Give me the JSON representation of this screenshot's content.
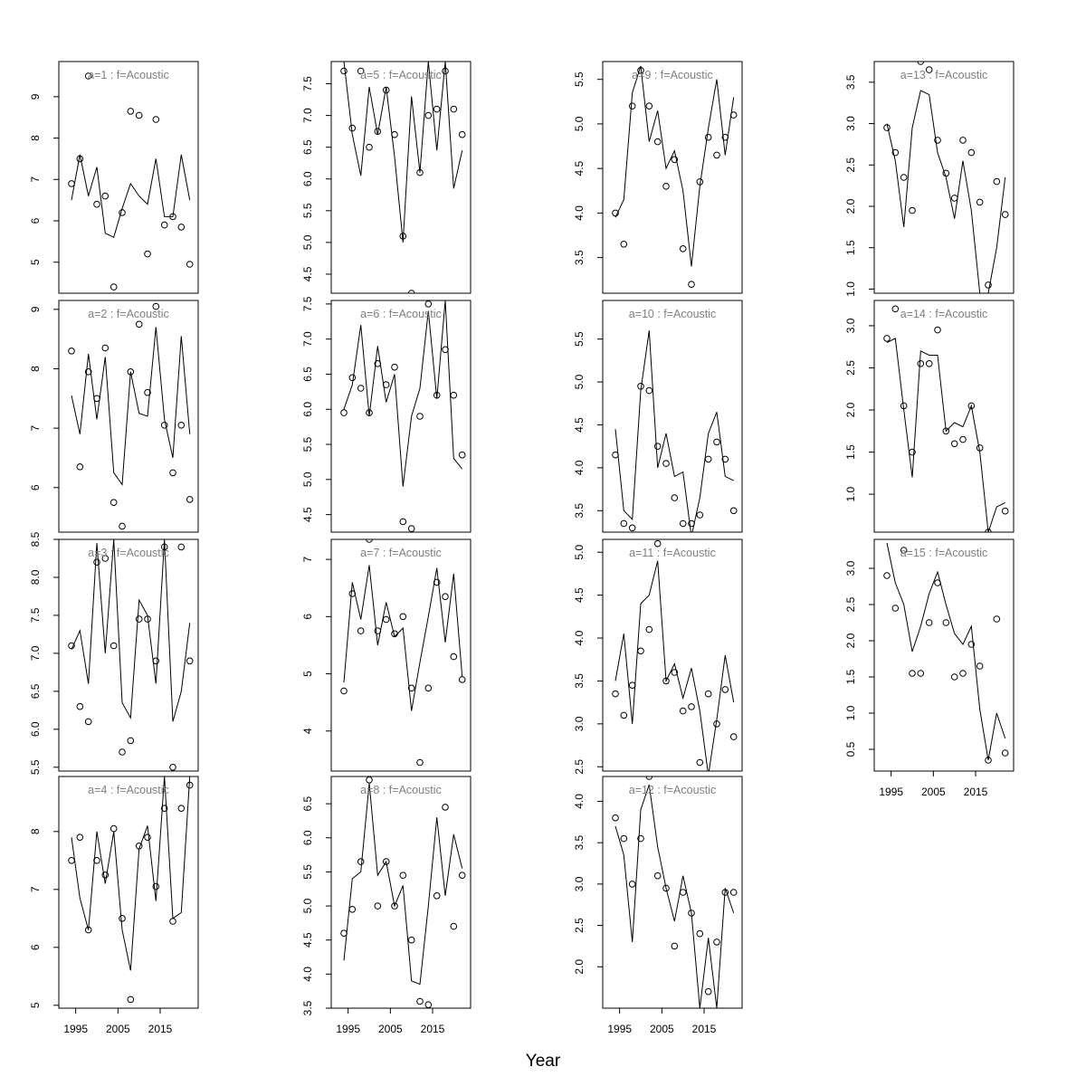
{
  "figure": {
    "xlabel": "Year"
  },
  "style": {
    "line_color": "#000000",
    "point_color": "#000000",
    "title_color": "#808080",
    "frame_color": "#000000",
    "line_type": "observed values as circles, fitted values as line"
  },
  "chart_data": [
    {
      "type": "line",
      "title": "a=1  :  f=Acoustic",
      "xlim": [
        1991,
        2024
      ],
      "ylim": [
        4.25,
        9.85
      ],
      "yticks": [
        5,
        6,
        7,
        8,
        9
      ],
      "xticks": [
        1995,
        2005,
        2015
      ],
      "show_xticks": false,
      "x": [
        1994,
        1996,
        1998,
        2000,
        2002,
        2004,
        2006,
        2008,
        2010,
        2012,
        2014,
        2016,
        2018,
        2020,
        2022
      ],
      "fit": [
        6.5,
        7.6,
        6.6,
        7.3,
        5.7,
        5.6,
        6.3,
        6.9,
        6.6,
        6.4,
        7.5,
        6.1,
        6.1,
        7.6,
        6.5
      ],
      "observed": [
        6.9,
        7.5,
        9.5,
        6.4,
        6.6,
        4.4,
        6.2,
        8.65,
        8.55,
        5.2,
        8.45,
        5.9,
        6.1,
        5.85,
        4.95
      ]
    },
    {
      "type": "line",
      "title": "a=2  :  f=Acoustic",
      "xlim": [
        1991,
        2024
      ],
      "ylim": [
        5.25,
        9.15
      ],
      "yticks": [
        6,
        7,
        8,
        9
      ],
      "xticks": [
        1995,
        2005,
        2015
      ],
      "show_xticks": false,
      "x": [
        1994,
        1996,
        1998,
        2000,
        2002,
        2004,
        2006,
        2008,
        2010,
        2012,
        2014,
        2016,
        2018,
        2020,
        2022
      ],
      "fit": [
        7.55,
        6.9,
        8.25,
        7.15,
        8.2,
        6.25,
        6.05,
        7.95,
        7.25,
        7.2,
        8.7,
        7.15,
        6.5,
        8.55,
        6.9
      ],
      "observed": [
        8.3,
        6.35,
        7.95,
        7.5,
        8.35,
        5.75,
        5.35,
        7.95,
        8.75,
        7.6,
        9.05,
        7.05,
        6.25,
        7.05,
        5.8
      ]
    },
    {
      "type": "line",
      "title": "a=3  :  f=Acoustic",
      "xlim": [
        1991,
        2024
      ],
      "ylim": [
        5.45,
        8.5
      ],
      "yticks": [
        5.5,
        6.0,
        6.5,
        7.0,
        7.5,
        8.0,
        8.5
      ],
      "xticks": [
        1995,
        2005,
        2015
      ],
      "show_xticks": false,
      "x": [
        1994,
        1996,
        1998,
        2000,
        2002,
        2004,
        2006,
        2008,
        2010,
        2012,
        2014,
        2016,
        2018,
        2020,
        2022
      ],
      "fit": [
        7.05,
        7.3,
        6.6,
        8.45,
        7.0,
        8.5,
        6.35,
        6.15,
        7.7,
        7.5,
        6.6,
        8.5,
        6.1,
        6.5,
        7.4
      ],
      "observed": [
        7.1,
        6.3,
        6.1,
        8.2,
        8.25,
        7.1,
        5.7,
        5.85,
        7.45,
        7.45,
        6.9,
        8.4,
        5.5,
        8.4,
        6.9
      ]
    },
    {
      "type": "line",
      "title": "a=4  :  f=Acoustic",
      "xlim": [
        1991,
        2024
      ],
      "ylim": [
        4.95,
        8.95
      ],
      "yticks": [
        5,
        6,
        7,
        8
      ],
      "xticks": [
        1995,
        2005,
        2015
      ],
      "show_xticks": true,
      "x": [
        1994,
        1996,
        1998,
        2000,
        2002,
        2004,
        2006,
        2008,
        2010,
        2012,
        2014,
        2016,
        2018,
        2020,
        2022
      ],
      "fit": [
        7.9,
        6.85,
        6.3,
        8.0,
        7.1,
        8.0,
        6.3,
        5.6,
        7.7,
        8.1,
        6.8,
        8.95,
        6.5,
        6.6,
        8.95
      ],
      "observed": [
        7.5,
        7.9,
        6.3,
        7.5,
        7.25,
        8.05,
        6.5,
        5.1,
        7.75,
        7.9,
        7.05,
        8.4,
        6.45,
        8.4,
        8.8
      ]
    },
    {
      "type": "line",
      "title": "a=5  :  f=Acoustic",
      "xlim": [
        1991,
        2024
      ],
      "ylim": [
        4.2,
        7.85
      ],
      "yticks": [
        4.5,
        5.0,
        5.5,
        6.0,
        6.5,
        7.0,
        7.5
      ],
      "xticks": [
        1995,
        2005,
        2015
      ],
      "show_xticks": false,
      "x": [
        1994,
        1996,
        1998,
        2000,
        2002,
        2004,
        2006,
        2008,
        2010,
        2012,
        2014,
        2016,
        2018,
        2020,
        2022
      ],
      "fit": [
        7.85,
        6.7,
        6.05,
        7.45,
        6.7,
        7.45,
        6.35,
        5.0,
        7.3,
        6.1,
        7.85,
        6.45,
        7.85,
        5.85,
        6.45
      ],
      "observed": [
        7.7,
        6.8,
        7.7,
        6.5,
        6.75,
        7.4,
        6.7,
        5.1,
        4.2,
        6.1,
        7.0,
        7.1,
        7.7,
        7.1,
        6.7
      ]
    },
    {
      "type": "line",
      "title": "a=6  :  f=Acoustic",
      "xlim": [
        1991,
        2024
      ],
      "ylim": [
        4.25,
        7.55
      ],
      "yticks": [
        4.5,
        5.0,
        5.5,
        6.0,
        6.5,
        7.0,
        7.5
      ],
      "xticks": [
        1995,
        2005,
        2015
      ],
      "show_xticks": false,
      "x": [
        1994,
        1996,
        1998,
        2000,
        2002,
        2004,
        2006,
        2008,
        2010,
        2012,
        2014,
        2016,
        2018,
        2020,
        2022
      ],
      "fit": [
        6.0,
        6.35,
        7.2,
        5.9,
        6.9,
        6.1,
        6.5,
        4.9,
        5.9,
        6.3,
        7.4,
        6.15,
        7.55,
        5.3,
        5.15
      ],
      "observed": [
        5.95,
        6.45,
        6.3,
        5.95,
        6.65,
        6.35,
        6.6,
        4.4,
        4.3,
        5.9,
        7.5,
        6.2,
        6.85,
        6.2,
        5.35
      ]
    },
    {
      "type": "line",
      "title": "a=7  :  f=Acoustic",
      "xlim": [
        1991,
        2024
      ],
      "ylim": [
        3.3,
        7.35
      ],
      "yticks": [
        4,
        5,
        6,
        7
      ],
      "xticks": [
        1995,
        2005,
        2015
      ],
      "show_xticks": false,
      "x": [
        1994,
        1996,
        1998,
        2000,
        2002,
        2004,
        2006,
        2008,
        2010,
        2012,
        2014,
        2016,
        2018,
        2020,
        2022
      ],
      "fit": [
        4.85,
        6.6,
        5.95,
        6.9,
        5.5,
        6.25,
        5.65,
        5.8,
        4.35,
        5.2,
        6.0,
        6.85,
        5.55,
        6.75,
        4.95
      ],
      "observed": [
        4.7,
        6.4,
        5.75,
        7.35,
        5.75,
        5.95,
        5.7,
        6.0,
        4.75,
        3.45,
        4.75,
        6.6,
        6.35,
        5.3,
        4.9
      ]
    },
    {
      "type": "line",
      "title": "a=8  :  f=Acoustic",
      "xlim": [
        1991,
        2024
      ],
      "ylim": [
        3.5,
        6.9
      ],
      "yticks": [
        3.5,
        4.0,
        4.5,
        5.0,
        5.5,
        6.0,
        6.5
      ],
      "xticks": [
        1995,
        2005,
        2015
      ],
      "show_xticks": true,
      "x": [
        1994,
        1996,
        1998,
        2000,
        2002,
        2004,
        2006,
        2008,
        2010,
        2012,
        2014,
        2016,
        2018,
        2020,
        2022
      ],
      "fit": [
        4.2,
        5.4,
        5.5,
        6.8,
        5.45,
        5.65,
        5.0,
        5.3,
        3.9,
        3.85,
        5.0,
        6.3,
        5.15,
        6.05,
        5.55
      ],
      "observed": [
        4.6,
        4.95,
        5.65,
        6.85,
        5.0,
        5.65,
        5.0,
        5.45,
        4.5,
        3.6,
        3.55,
        5.15,
        6.45,
        4.7,
        5.45
      ]
    },
    {
      "type": "line",
      "title": "a=9  :  f=Acoustic",
      "xlim": [
        1991,
        2024
      ],
      "ylim": [
        3.1,
        5.7
      ],
      "yticks": [
        3.5,
        4.0,
        4.5,
        5.0,
        5.5
      ],
      "xticks": [
        1995,
        2005,
        2015
      ],
      "show_xticks": false,
      "x": [
        1994,
        1996,
        1998,
        2000,
        2002,
        2004,
        2006,
        2008,
        2010,
        2012,
        2014,
        2016,
        2018,
        2020,
        2022
      ],
      "fit": [
        3.95,
        4.15,
        5.35,
        5.65,
        4.8,
        5.15,
        4.5,
        4.7,
        4.25,
        3.4,
        4.3,
        4.95,
        5.5,
        4.65,
        5.3
      ],
      "observed": [
        4.0,
        3.65,
        5.2,
        5.6,
        5.2,
        4.8,
        4.3,
        4.6,
        3.6,
        3.2,
        4.35,
        4.85,
        4.65,
        4.85,
        5.1
      ]
    },
    {
      "type": "line",
      "title": "a=10  :  f=Acoustic",
      "xlim": [
        1991,
        2024
      ],
      "ylim": [
        3.25,
        5.95
      ],
      "yticks": [
        3.5,
        4.0,
        4.5,
        5.0,
        5.5
      ],
      "xticks": [
        1995,
        2005,
        2015
      ],
      "show_xticks": false,
      "x": [
        1994,
        1996,
        1998,
        2000,
        2002,
        2004,
        2006,
        2008,
        2010,
        2012,
        2014,
        2016,
        2018,
        2020,
        2022
      ],
      "fit": [
        4.45,
        3.5,
        3.4,
        4.9,
        5.6,
        4.0,
        4.4,
        3.9,
        3.95,
        3.2,
        3.65,
        4.4,
        4.65,
        3.9,
        3.85
      ],
      "observed": [
        4.15,
        3.35,
        3.3,
        4.95,
        4.9,
        4.25,
        4.05,
        3.65,
        3.35,
        3.35,
        3.45,
        4.1,
        4.3,
        4.1,
        3.5
      ]
    },
    {
      "type": "line",
      "title": "a=11  :  f=Acoustic",
      "xlim": [
        1991,
        2024
      ],
      "ylim": [
        2.45,
        5.15
      ],
      "yticks": [
        2.5,
        3.0,
        3.5,
        4.0,
        4.5,
        5.0
      ],
      "xticks": [
        1995,
        2005,
        2015
      ],
      "show_xticks": false,
      "x": [
        1994,
        1996,
        1998,
        2000,
        2002,
        2004,
        2006,
        2008,
        2010,
        2012,
        2014,
        2016,
        2018,
        2020,
        2022
      ],
      "fit": [
        3.5,
        4.05,
        3.0,
        4.4,
        4.5,
        4.9,
        3.5,
        3.7,
        3.3,
        3.65,
        3.15,
        2.4,
        3.05,
        3.8,
        3.25
      ],
      "observed": [
        3.35,
        3.1,
        3.45,
        3.85,
        4.1,
        5.1,
        3.5,
        3.6,
        3.15,
        3.2,
        2.55,
        3.35,
        3.0,
        3.4,
        2.85
      ]
    },
    {
      "type": "line",
      "title": "a=12  :  f=Acoustic",
      "xlim": [
        1991,
        2024
      ],
      "ylim": [
        1.5,
        4.3
      ],
      "yticks": [
        2.0,
        2.5,
        3.0,
        3.5,
        4.0
      ],
      "xticks": [
        1995,
        2005,
        2015
      ],
      "show_xticks": true,
      "x": [
        1994,
        1996,
        1998,
        2000,
        2002,
        2004,
        2006,
        2008,
        2010,
        2012,
        2014,
        2016,
        2018,
        2020,
        2022
      ],
      "fit": [
        3.7,
        3.35,
        2.3,
        3.9,
        4.2,
        3.45,
        2.95,
        2.55,
        3.1,
        2.65,
        1.5,
        2.35,
        1.5,
        2.95,
        2.65
      ],
      "observed": [
        3.8,
        3.55,
        3.0,
        3.55,
        4.3,
        3.1,
        2.95,
        2.25,
        2.9,
        2.65,
        2.4,
        1.7,
        2.3,
        2.9,
        2.9
      ]
    },
    {
      "type": "line",
      "title": "a=13  :  f=Acoustic",
      "xlim": [
        1991,
        2024
      ],
      "ylim": [
        0.95,
        3.75
      ],
      "yticks": [
        1.0,
        1.5,
        2.0,
        2.5,
        3.0,
        3.5
      ],
      "xticks": [
        1995,
        2005,
        2015
      ],
      "show_xticks": false,
      "x": [
        1994,
        1996,
        1998,
        2000,
        2002,
        2004,
        2006,
        2008,
        2010,
        2012,
        2014,
        2016,
        2018,
        2020,
        2022
      ],
      "fit": [
        3.0,
        2.55,
        1.75,
        2.95,
        3.4,
        3.35,
        2.65,
        2.35,
        1.85,
        2.55,
        1.95,
        0.95,
        0.95,
        1.5,
        2.35
      ],
      "observed": [
        2.95,
        2.65,
        2.35,
        1.95,
        3.75,
        3.65,
        2.8,
        2.4,
        2.1,
        2.8,
        2.65,
        2.05,
        1.05,
        2.3,
        1.9
      ]
    },
    {
      "type": "line",
      "title": "a=14  :  f=Acoustic",
      "xlim": [
        1991,
        2024
      ],
      "ylim": [
        0.55,
        3.3
      ],
      "yticks": [
        1.0,
        1.5,
        2.0,
        2.5,
        3.0
      ],
      "xticks": [
        1995,
        2005,
        2015
      ],
      "show_xticks": false,
      "x": [
        1994,
        1996,
        1998,
        2000,
        2002,
        2004,
        2006,
        2008,
        2010,
        2012,
        2014,
        2016,
        2018,
        2020,
        2022
      ],
      "fit": [
        2.8,
        2.85,
        2.0,
        1.2,
        2.7,
        2.65,
        2.65,
        1.75,
        1.85,
        1.8,
        2.05,
        1.5,
        0.55,
        0.85,
        0.9
      ],
      "observed": [
        2.85,
        3.2,
        2.05,
        1.5,
        2.55,
        2.55,
        2.95,
        1.75,
        1.6,
        1.65,
        2.05,
        1.55,
        0.55,
        0.5,
        0.8
      ]
    },
    {
      "type": "line",
      "title": "a=15  :  f=Acoustic",
      "xlim": [
        1991,
        2024
      ],
      "ylim": [
        0.2,
        3.4
      ],
      "yticks": [
        0.5,
        1.0,
        1.5,
        2.0,
        2.5,
        3.0
      ],
      "xticks": [
        1995,
        2005,
        2015
      ],
      "show_xticks": true,
      "x": [
        1994,
        1996,
        1998,
        2000,
        2002,
        2004,
        2006,
        2008,
        2010,
        2012,
        2014,
        2016,
        2018,
        2020,
        2022
      ],
      "fit": [
        3.35,
        2.8,
        2.5,
        1.85,
        2.2,
        2.65,
        2.95,
        2.5,
        2.1,
        1.95,
        2.2,
        1.05,
        0.35,
        1.0,
        0.65
      ],
      "observed": [
        2.9,
        2.45,
        3.25,
        1.55,
        1.55,
        2.25,
        2.8,
        2.25,
        1.5,
        1.55,
        1.95,
        1.65,
        0.35,
        2.3,
        0.45
      ]
    }
  ]
}
